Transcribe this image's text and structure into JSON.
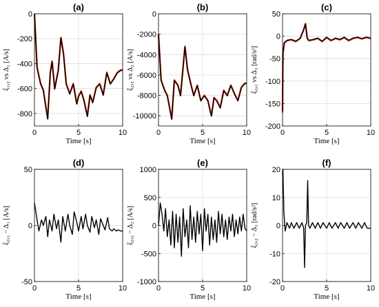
{
  "chart_data": [
    {
      "type": "line",
      "title": "(a)",
      "xlabel": "Time  [s]",
      "ylabel": "ξ₁,₂ vs  Δ₁  [A/s]",
      "xlim": [
        0,
        10
      ],
      "ylim": [
        -900,
        0
      ],
      "xticks": [
        0,
        5,
        10
      ],
      "yticks": [
        0,
        -200,
        -400,
        -600,
        -800
      ],
      "grid": true,
      "series": [
        {
          "color": "#d43a1e",
          "x": [
            0,
            0.3,
            0.7,
            1.0,
            1.5,
            1.8,
            2.0,
            2.3,
            2.7,
            3.0,
            3.3,
            3.6,
            4.0,
            4.4,
            4.8,
            5.0,
            5.3,
            5.6,
            6.0,
            6.3,
            6.6,
            7.0,
            7.4,
            7.8,
            8.2,
            8.6,
            9.0,
            9.4,
            9.8,
            10
          ],
          "y": [
            0,
            -430,
            -560,
            -610,
            -840,
            -470,
            -380,
            -600,
            -450,
            -190,
            -320,
            -560,
            -640,
            -560,
            -720,
            -660,
            -620,
            -690,
            -820,
            -650,
            -710,
            -590,
            -560,
            -650,
            -470,
            -560,
            -520,
            -470,
            -450,
            -450
          ]
        },
        {
          "color": "#000000",
          "x": [
            0,
            0.3,
            0.7,
            1.0,
            1.5,
            1.8,
            2.0,
            2.3,
            2.7,
            3.0,
            3.3,
            3.6,
            4.0,
            4.4,
            4.8,
            5.0,
            5.3,
            5.6,
            6.0,
            6.3,
            6.6,
            7.0,
            7.4,
            7.8,
            8.2,
            8.6,
            9.0,
            9.4,
            9.8,
            10
          ],
          "y": [
            0,
            -435,
            -565,
            -615,
            -845,
            -475,
            -385,
            -605,
            -455,
            -195,
            -325,
            -565,
            -645,
            -565,
            -725,
            -665,
            -625,
            -695,
            -825,
            -655,
            -715,
            -595,
            -565,
            -655,
            -475,
            -565,
            -525,
            -475,
            -455,
            -455
          ]
        }
      ]
    },
    {
      "type": "line",
      "title": "(b)",
      "xlabel": "Time  [s]",
      "ylabel": "ξ₂,₂ vs  Δ₂  [A/s]",
      "xlim": [
        0,
        10
      ],
      "ylim": [
        -11000,
        0
      ],
      "xticks": [
        0,
        5,
        10
      ],
      "yticks": [
        0,
        -2000,
        -4000,
        -6000,
        -8000,
        -10000
      ],
      "grid": true,
      "series": [
        {
          "color": "#d43a1e",
          "x": [
            0,
            0.3,
            0.7,
            1.0,
            1.5,
            1.8,
            2.2,
            2.5,
            3.0,
            3.3,
            3.7,
            4.0,
            4.4,
            4.8,
            5.2,
            5.6,
            6.0,
            6.3,
            6.6,
            7.0,
            7.4,
            7.8,
            8.2,
            8.6,
            9.0,
            9.4,
            9.8,
            10
          ],
          "y": [
            -2000,
            -6500,
            -7500,
            -8000,
            -10300,
            -6500,
            -7000,
            -8000,
            -3200,
            -5500,
            -7000,
            -8000,
            -7000,
            -8500,
            -8000,
            -8500,
            -10000,
            -8200,
            -8500,
            -9200,
            -7500,
            -8000,
            -7000,
            -7800,
            -8500,
            -7200,
            -6800,
            -6800
          ]
        },
        {
          "color": "#000000",
          "x": [
            0,
            0.3,
            0.7,
            1.0,
            1.5,
            1.8,
            2.2,
            2.5,
            3.0,
            3.3,
            3.7,
            4.0,
            4.4,
            4.8,
            5.2,
            5.6,
            6.0,
            6.3,
            6.6,
            7.0,
            7.4,
            7.8,
            8.2,
            8.6,
            9.0,
            9.4,
            9.8,
            10
          ],
          "y": [
            -2000,
            -6550,
            -7550,
            -8050,
            -10350,
            -6550,
            -7050,
            -8050,
            -3250,
            -5550,
            -7050,
            -8050,
            -7050,
            -8550,
            -8050,
            -8550,
            -10050,
            -8250,
            -8550,
            -9250,
            -7550,
            -8050,
            -7050,
            -7850,
            -8550,
            -7250,
            -6850,
            -6850
          ]
        }
      ]
    },
    {
      "type": "line",
      "title": "(c)",
      "xlabel": "Time  [s]",
      "ylabel": "ξ₃,₁ vs  Δ₃  [rad/s²]",
      "xlim": [
        0,
        10
      ],
      "ylim": [
        -200,
        50
      ],
      "xticks": [
        0,
        5,
        10
      ],
      "yticks": [
        50,
        0,
        -50,
        -100,
        -150,
        -200
      ],
      "grid": true,
      "series": [
        {
          "color": "#d43a1e",
          "x": [
            0,
            0.05,
            0.2,
            0.5,
            1.0,
            1.5,
            2.0,
            2.4,
            2.6,
            2.8,
            3.0,
            3.5,
            4.0,
            4.5,
            5.0,
            5.5,
            6.0,
            6.5,
            7.0,
            7.5,
            8.0,
            8.5,
            9.0,
            9.5,
            10
          ],
          "y": [
            -170,
            -40,
            -15,
            -10,
            -8,
            -12,
            -5,
            15,
            28,
            -5,
            -10,
            -8,
            -5,
            -12,
            -3,
            -10,
            -5,
            -8,
            -3,
            -10,
            -5,
            -3,
            -6,
            -3,
            -5
          ]
        },
        {
          "color": "#000000",
          "x": [
            0,
            0.05,
            0.2,
            0.5,
            1.0,
            1.5,
            2.0,
            2.4,
            2.6,
            2.8,
            3.0,
            3.5,
            4.0,
            4.5,
            5.0,
            5.5,
            6.0,
            6.5,
            7.0,
            7.5,
            8.0,
            8.5,
            9.0,
            9.5,
            10
          ],
          "y": [
            -165,
            -38,
            -14,
            -9,
            -7,
            -11,
            -4,
            14,
            27,
            -4,
            -9,
            -7,
            -4,
            -11,
            -2,
            -9,
            -4,
            -7,
            -2,
            -9,
            -4,
            -2,
            -5,
            -2,
            -4
          ]
        }
      ]
    },
    {
      "type": "line",
      "title": "(d)",
      "xlabel": "Time  [s]",
      "ylabel": "ξ₂,₁ − Δ₁  [A/s]",
      "xlim": [
        0,
        10
      ],
      "ylim": [
        -50,
        50
      ],
      "xticks": [
        0,
        5,
        10
      ],
      "yticks": [
        50,
        0,
        -50
      ],
      "grid": true,
      "series": [
        {
          "color": "#000000",
          "x": [
            0,
            0.1,
            0.3,
            0.5,
            0.8,
            1.0,
            1.3,
            1.5,
            1.7,
            2.0,
            2.2,
            2.5,
            2.7,
            3.0,
            3.2,
            3.5,
            3.8,
            4.0,
            4.3,
            4.5,
            4.8,
            5.0,
            5.3,
            5.5,
            5.8,
            6.0,
            6.3,
            6.5,
            6.8,
            7.0,
            7.3,
            7.5,
            7.8,
            8.0,
            8.3,
            8.5,
            8.8,
            9.0,
            9.3,
            9.5,
            9.8,
            10
          ],
          "y": [
            20,
            15,
            5,
            -5,
            5,
            0,
            8,
            -10,
            5,
            -5,
            10,
            -3,
            5,
            -15,
            8,
            -5,
            10,
            0,
            -8,
            12,
            3,
            -5,
            8,
            -3,
            10,
            0,
            -6,
            8,
            -2,
            5,
            -8,
            6,
            0,
            -4,
            7,
            -3,
            -5,
            -3,
            -5,
            -4,
            -5,
            -5
          ]
        }
      ]
    },
    {
      "type": "line",
      "title": "(e)",
      "xlabel": "Time  [s]",
      "ylabel": "ξ₂,₂ − Δ₂  [A/s]",
      "xlim": [
        0,
        10
      ],
      "ylim": [
        -1000,
        1000
      ],
      "xticks": [
        0,
        5,
        10
      ],
      "yticks": [
        1000,
        500,
        0,
        -500,
        -1000
      ],
      "grid": true,
      "series": [
        {
          "color": "#000000",
          "x": [
            0,
            0.2,
            0.4,
            0.6,
            0.8,
            1.0,
            1.2,
            1.4,
            1.6,
            1.8,
            2.0,
            2.2,
            2.4,
            2.6,
            2.8,
            3.0,
            3.2,
            3.4,
            3.6,
            3.8,
            4.0,
            4.2,
            4.4,
            4.6,
            4.8,
            5.0,
            5.2,
            5.4,
            5.6,
            5.8,
            6.0,
            6.2,
            6.4,
            6.6,
            6.8,
            7.0,
            7.2,
            7.4,
            7.6,
            7.8,
            8.0,
            8.2,
            8.4,
            8.6,
            8.8,
            9.0,
            9.2,
            9.4,
            9.6,
            9.8,
            10
          ],
          "y": [
            0,
            400,
            200,
            -100,
            300,
            -200,
            100,
            -350,
            250,
            -400,
            200,
            -300,
            150,
            -550,
            300,
            -200,
            100,
            -400,
            350,
            -250,
            150,
            -300,
            250,
            -150,
            200,
            -450,
            300,
            -100,
            200,
            -350,
            150,
            -250,
            100,
            -300,
            250,
            -150,
            200,
            -200,
            100,
            -250,
            150,
            -100,
            200,
            -200,
            100,
            -150,
            150,
            -100,
            200,
            -50,
            -100
          ]
        }
      ]
    },
    {
      "type": "line",
      "title": "(f)",
      "xlabel": "Time  [s]",
      "ylabel": "ξ₃,₂ − Δ₃  [rad/s²]",
      "xlim": [
        0,
        10
      ],
      "ylim": [
        -20,
        20
      ],
      "xticks": [
        0,
        5,
        10
      ],
      "yticks": [
        20,
        10,
        0,
        -10,
        -20
      ],
      "grid": true,
      "series": [
        {
          "color": "#000000",
          "x": [
            0,
            0.05,
            0.15,
            0.3,
            0.5,
            0.8,
            1.0,
            1.3,
            1.6,
            1.9,
            2.2,
            2.4,
            2.5,
            2.6,
            2.75,
            2.85,
            2.95,
            3.1,
            3.4,
            3.7,
            4.0,
            4.3,
            4.6,
            5.0,
            5.3,
            5.6,
            6.0,
            6.3,
            6.6,
            7.0,
            7.3,
            7.6,
            8.0,
            8.3,
            8.6,
            9.0,
            9.3,
            9.6,
            10
          ],
          "y": [
            18,
            20,
            5,
            -2,
            1,
            -1,
            1,
            -1,
            1,
            -1,
            1,
            -1,
            -15,
            0,
            1,
            16,
            0,
            -1,
            1,
            -1,
            1,
            -1,
            1,
            -1,
            1,
            -1,
            1,
            -1,
            1,
            -1,
            1,
            -1,
            1,
            -1,
            1,
            -1,
            1,
            -1,
            -1
          ]
        }
      ]
    }
  ]
}
